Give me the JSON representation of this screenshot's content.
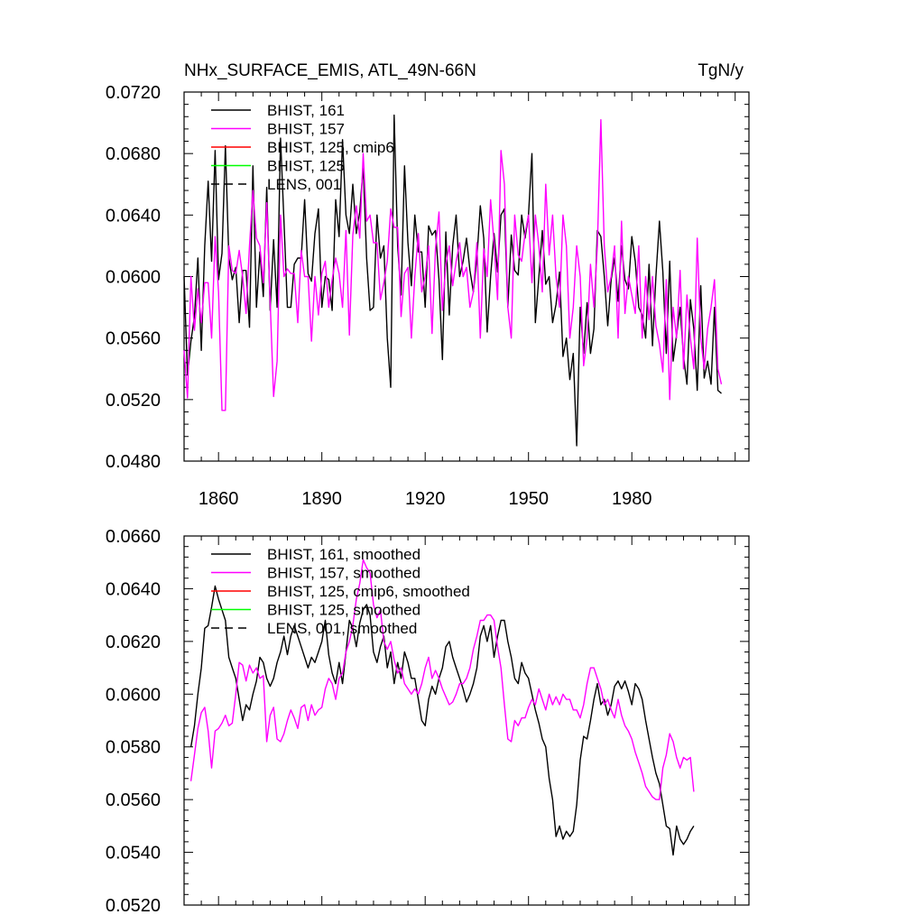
{
  "chart_data": [
    {
      "type": "line",
      "title": "NHx_SURFACE_EMIS, ATL_49N-66N",
      "units": "TgN/y",
      "xlim": [
        1850,
        2014
      ],
      "ylim": [
        0.048,
        0.072
      ],
      "yticks": [
        "0.0480",
        "0.0520",
        "0.0560",
        "0.0600",
        "0.0640",
        "0.0680",
        "0.0720"
      ],
      "xticks": [
        "1860",
        "1890",
        "1920",
        "1950",
        "1980"
      ],
      "legend": [
        {
          "label": "BHIST, 161",
          "color": "#000000",
          "dash": false
        },
        {
          "label": "BHIST, 157",
          "color": "#ff00ff",
          "dash": false
        },
        {
          "label": "BHIST, 125, cmip6",
          "color": "#ff0000",
          "dash": false
        },
        {
          "label": "BHIST, 125",
          "color": "#00ff00",
          "dash": false
        },
        {
          "label": "LENS, 001",
          "color": "#000000",
          "dash": true
        }
      ],
      "series": [
        {
          "name": "BHIST, 161",
          "color": "#000000",
          "x_start": 1850,
          "values": [
            0.06,
            0.0536,
            0.0558,
            0.0574,
            0.0612,
            0.0552,
            0.062,
            0.0662,
            0.061,
            0.0682,
            0.0598,
            0.0615,
            0.0685,
            0.0612,
            0.0598,
            0.0606,
            0.057,
            0.0604,
            0.0604,
            0.0567,
            0.0672,
            0.058,
            0.0616,
            0.0587,
            0.0658,
            0.0578,
            0.0624,
            0.058,
            0.069,
            0.0636,
            0.058,
            0.058,
            0.0608,
            0.0612,
            0.0612,
            0.065,
            0.0602,
            0.0597,
            0.0628,
            0.0644,
            0.058,
            0.06,
            0.0598,
            0.0578,
            0.065,
            0.0626,
            0.0689,
            0.064,
            0.0628,
            0.066,
            0.0628,
            0.0642,
            0.0672,
            0.0612,
            0.0578,
            0.058,
            0.064,
            0.0612,
            0.062,
            0.056,
            0.0528,
            0.0705,
            0.062,
            0.0588,
            0.0672,
            0.0622,
            0.0594,
            0.064,
            0.0616,
            0.0616,
            0.058,
            0.0633,
            0.0627,
            0.063,
            0.0598,
            0.0546,
            0.0629,
            0.0575,
            0.062,
            0.064,
            0.06,
            0.061,
            0.0625,
            0.0604,
            0.059,
            0.0612,
            0.0646,
            0.0625,
            0.0564,
            0.06,
            0.0628,
            0.0603,
            0.064,
            0.0644,
            0.058,
            0.0627,
            0.0604,
            0.0601,
            0.064,
            0.0625,
            0.064,
            0.068,
            0.057,
            0.06,
            0.063,
            0.0595,
            0.06,
            0.057,
            0.0582,
            0.0603,
            0.0548,
            0.056,
            0.0533,
            0.055,
            0.049,
            0.058,
            0.055,
            0.0583,
            0.055,
            0.0566,
            0.063,
            0.0626,
            0.06,
            0.0568,
            0.0598,
            0.0612,
            0.0584,
            0.062,
            0.0598,
            0.0592,
            0.0626,
            0.061,
            0.058,
            0.0575,
            0.056,
            0.0608,
            0.0555,
            0.06,
            0.0636,
            0.0603,
            0.055,
            0.061,
            0.0545,
            0.0562,
            0.058,
            0.0548,
            0.053,
            0.0585,
            0.0566,
            0.0526,
            0.0594,
            0.0534,
            0.0545,
            0.053,
            0.058,
            0.0526,
            0.0524
          ]
        },
        {
          "name": "BHIST, 157",
          "color": "#ff00ff",
          "x_start": 1850,
          "values": [
            0.0552,
            0.0521,
            0.06,
            0.0565,
            0.0592,
            0.057,
            0.0596,
            0.0596,
            0.056,
            0.0626,
            0.059,
            0.0513,
            0.0513,
            0.062,
            0.0604,
            0.0602,
            0.0617,
            0.06,
            0.0576,
            0.062,
            0.0656,
            0.0625,
            0.062,
            0.0596,
            0.0648,
            0.0584,
            0.0522,
            0.0545,
            0.064,
            0.06,
            0.0605,
            0.0602,
            0.0602,
            0.057,
            0.0617,
            0.06,
            0.06,
            0.0558,
            0.06,
            0.0575,
            0.0602,
            0.061,
            0.058,
            0.0598,
            0.0612,
            0.0602,
            0.058,
            0.063,
            0.0562,
            0.0627,
            0.0646,
            0.0625,
            0.068,
            0.0636,
            0.064,
            0.0622,
            0.0622,
            0.0585,
            0.0596,
            0.061,
            0.0644,
            0.0632,
            0.0632,
            0.0574,
            0.0602,
            0.0606,
            0.056,
            0.06,
            0.0628,
            0.059,
            0.06,
            0.062,
            0.0563,
            0.0618,
            0.0642,
            0.0578,
            0.0608,
            0.062,
            0.0594,
            0.061,
            0.0622,
            0.06,
            0.0606,
            0.058,
            0.059,
            0.0622,
            0.056,
            0.0618,
            0.06,
            0.065,
            0.0622,
            0.0585,
            0.0682,
            0.066,
            0.058,
            0.056,
            0.064,
            0.0614,
            0.061,
            0.0628,
            0.064,
            0.0596,
            0.064,
            0.062,
            0.059,
            0.066,
            0.0614,
            0.064,
            0.06,
            0.058,
            0.064,
            0.062,
            0.056,
            0.058,
            0.062,
            0.06,
            0.0542,
            0.056,
            0.0608,
            0.058,
            0.062,
            0.0702,
            0.062,
            0.059,
            0.06,
            0.062,
            0.056,
            0.0636,
            0.0576,
            0.06,
            0.0588,
            0.0576,
            0.062,
            0.056,
            0.06,
            0.0572,
            0.06,
            0.0568,
            0.0556,
            0.0538,
            0.0598,
            0.052,
            0.058,
            0.056,
            0.0604,
            0.054,
            0.0588,
            0.056,
            0.054,
            0.0625,
            0.056,
            0.054,
            0.0566,
            0.058,
            0.0598,
            0.054,
            0.053
          ]
        }
      ]
    },
    {
      "type": "line",
      "xlim": [
        1850,
        2014
      ],
      "ylim": [
        0.052,
        0.066
      ],
      "yticks": [
        "0.0520",
        "0.0540",
        "0.0560",
        "0.0580",
        "0.0600",
        "0.0620",
        "0.0640",
        "0.0660"
      ],
      "legend": [
        {
          "label": "BHIST, 161, smoothed",
          "color": "#000000",
          "dash": false
        },
        {
          "label": "BHIST, 157, smoothed",
          "color": "#ff00ff",
          "dash": false
        },
        {
          "label": "BHIST, 125, cmip6, smoothed",
          "color": "#ff0000",
          "dash": false
        },
        {
          "label": "BHIST, 125, smoothed",
          "color": "#00ff00",
          "dash": false
        },
        {
          "label": "LENS, 001, smoothed",
          "color": "#000000",
          "dash": true
        }
      ],
      "series": [
        {
          "name": "BHIST, 161, smoothed",
          "color": "#000000",
          "x_start": 1852,
          "values": [
            0.058,
            0.0588,
            0.06,
            0.061,
            0.0625,
            0.0626,
            0.0633,
            0.0641,
            0.0636,
            0.0632,
            0.0628,
            0.0614,
            0.061,
            0.0606,
            0.0598,
            0.059,
            0.0596,
            0.0594,
            0.06,
            0.0605,
            0.0614,
            0.0612,
            0.0606,
            0.0603,
            0.0606,
            0.0612,
            0.0616,
            0.0622,
            0.0615,
            0.0622,
            0.0626,
            0.0622,
            0.0618,
            0.0614,
            0.061,
            0.0614,
            0.0612,
            0.0616,
            0.062,
            0.0628,
            0.0615,
            0.0608,
            0.0604,
            0.0612,
            0.0604,
            0.0616,
            0.0628,
            0.0625,
            0.0618,
            0.0627,
            0.0632,
            0.0634,
            0.063,
            0.0616,
            0.0612,
            0.0618,
            0.0622,
            0.061,
            0.0616,
            0.0604,
            0.0612,
            0.0606,
            0.0616,
            0.0612,
            0.0606,
            0.0606,
            0.0598,
            0.059,
            0.0588,
            0.0598,
            0.0603,
            0.06,
            0.0606,
            0.061,
            0.0618,
            0.062,
            0.0614,
            0.061,
            0.0606,
            0.0602,
            0.0597,
            0.06,
            0.0604,
            0.061,
            0.0622,
            0.0626,
            0.062,
            0.0626,
            0.0614,
            0.0622,
            0.0628,
            0.0628,
            0.062,
            0.0614,
            0.0606,
            0.0604,
            0.0612,
            0.0608,
            0.0606,
            0.06,
            0.0594,
            0.0589,
            0.0583,
            0.058,
            0.0568,
            0.056,
            0.0546,
            0.055,
            0.0545,
            0.0548,
            0.0546,
            0.0548,
            0.0558,
            0.0575,
            0.0584,
            0.0583,
            0.059,
            0.0598,
            0.0604,
            0.0596,
            0.0598,
            0.0592,
            0.0596,
            0.0603,
            0.0605,
            0.0602,
            0.0605,
            0.0601,
            0.0596,
            0.0604,
            0.0602,
            0.0598,
            0.059,
            0.0583,
            0.0576,
            0.057,
            0.0566,
            0.0558,
            0.055,
            0.0549,
            0.0539,
            0.055,
            0.0545,
            0.0543,
            0.0545,
            0.0548,
            0.055
          ]
        },
        {
          "name": "BHIST, 157, smoothed",
          "color": "#ff00ff",
          "x_start": 1852,
          "values": [
            0.0567,
            0.0577,
            0.0587,
            0.0593,
            0.0595,
            0.0586,
            0.0572,
            0.0586,
            0.0587,
            0.0589,
            0.0592,
            0.0588,
            0.0589,
            0.06,
            0.0612,
            0.0611,
            0.0605,
            0.0611,
            0.0608,
            0.061,
            0.0606,
            0.0607,
            0.0582,
            0.0592,
            0.0595,
            0.0583,
            0.0582,
            0.0585,
            0.059,
            0.0594,
            0.0591,
            0.0587,
            0.0595,
            0.0596,
            0.059,
            0.0596,
            0.0592,
            0.0594,
            0.0595,
            0.0602,
            0.0606,
            0.0604,
            0.0598,
            0.0606,
            0.0608,
            0.0616,
            0.062,
            0.0626,
            0.0636,
            0.0642,
            0.0651,
            0.0648,
            0.0646,
            0.0634,
            0.0629,
            0.0632,
            0.062,
            0.0617,
            0.062,
            0.0613,
            0.0608,
            0.061,
            0.0604,
            0.0602,
            0.06,
            0.0602,
            0.06,
            0.0604,
            0.061,
            0.0614,
            0.0606,
            0.0609,
            0.0606,
            0.0602,
            0.0599,
            0.0596,
            0.0597,
            0.06,
            0.0604,
            0.0604,
            0.0606,
            0.061,
            0.0617,
            0.0622,
            0.0628,
            0.0628,
            0.063,
            0.063,
            0.0628,
            0.0618,
            0.061,
            0.0596,
            0.0583,
            0.0582,
            0.059,
            0.0588,
            0.0591,
            0.0591,
            0.0595,
            0.0598,
            0.0596,
            0.0602,
            0.0598,
            0.0594,
            0.06,
            0.0596,
            0.0599,
            0.0596,
            0.06,
            0.0598,
            0.0598,
            0.0594,
            0.0594,
            0.0591,
            0.0596,
            0.0604,
            0.061,
            0.061,
            0.0606,
            0.0602,
            0.0596,
            0.0598,
            0.0594,
            0.0591,
            0.0598,
            0.0592,
            0.0588,
            0.0586,
            0.0583,
            0.0578,
            0.0574,
            0.057,
            0.0565,
            0.0563,
            0.0561,
            0.056,
            0.056,
            0.0572,
            0.0577,
            0.0585,
            0.0582,
            0.0576,
            0.0572,
            0.0576,
            0.0575,
            0.0576,
            0.0563
          ]
        }
      ]
    }
  ]
}
